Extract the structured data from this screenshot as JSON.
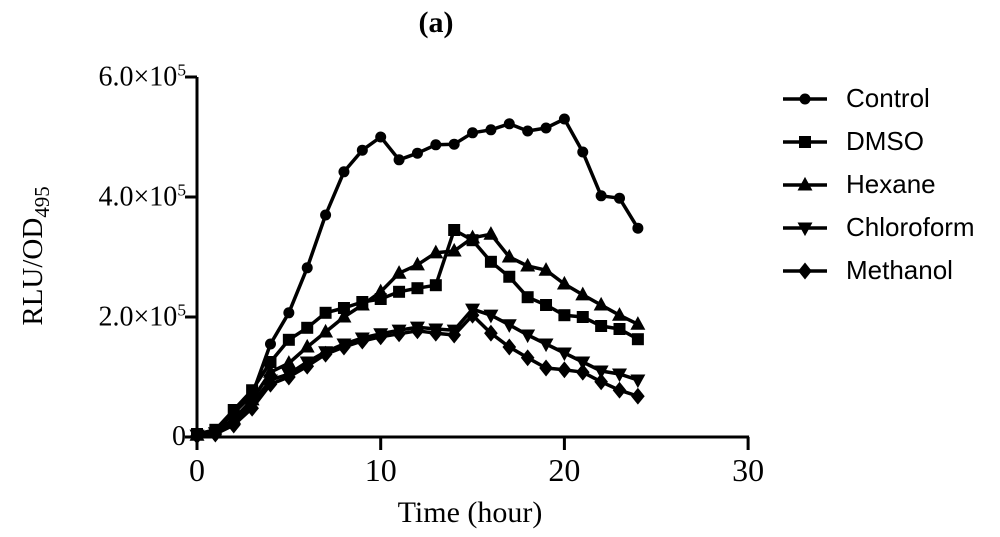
{
  "figure": {
    "title": "(a)"
  },
  "chart_data": {
    "type": "line",
    "title": "(a)",
    "xlabel": "Time (hour)",
    "ylabel": "RLU/OD",
    "ylabel_subscript": "495",
    "grid": false,
    "legend_position": "right",
    "colors": {
      "foreground": "#000000",
      "background": "#ffffff"
    },
    "x_axis": {
      "min": 0,
      "max": 30,
      "ticks": [
        0,
        10,
        20,
        30
      ]
    },
    "y_axis": {
      "min": 0,
      "max": 600000,
      "ticks": [
        {
          "value": 0,
          "base": "0",
          "exp": ""
        },
        {
          "value": 200000,
          "base": "2.0×10",
          "exp": "5"
        },
        {
          "value": 400000,
          "base": "4.0×10",
          "exp": "5"
        },
        {
          "value": 600000,
          "base": "6.0×10",
          "exp": "5"
        }
      ]
    },
    "x": [
      0,
      1,
      2,
      3,
      4,
      5,
      6,
      7,
      8,
      9,
      10,
      11,
      12,
      13,
      14,
      15,
      16,
      17,
      18,
      19,
      20,
      21,
      22,
      23,
      24
    ],
    "series": [
      {
        "name": "Control",
        "marker": "circle",
        "values": [
          5000,
          10000,
          40000,
          70000,
          155000,
          207000,
          282000,
          370000,
          442000,
          478000,
          500000,
          462000,
          473000,
          487000,
          488000,
          507000,
          512000,
          522000,
          510000,
          515000,
          530000,
          475000,
          402000,
          398000,
          348000
        ]
      },
      {
        "name": "DMSO",
        "marker": "square",
        "values": [
          5000,
          12000,
          45000,
          78000,
          125000,
          162000,
          182000,
          207000,
          215000,
          225000,
          230000,
          242000,
          248000,
          253000,
          345000,
          328000,
          292000,
          267000,
          233000,
          220000,
          203000,
          200000,
          185000,
          180000,
          163000
        ]
      },
      {
        "name": "Hexane",
        "marker": "triangle-up",
        "values": [
          3000,
          8000,
          30000,
          62000,
          108000,
          123000,
          150000,
          175000,
          200000,
          220000,
          242000,
          273000,
          287000,
          307000,
          310000,
          332000,
          338000,
          300000,
          285000,
          278000,
          255000,
          237000,
          220000,
          203000,
          188000
        ]
      },
      {
        "name": "Chloroform",
        "marker": "triangle-down",
        "values": [
          3000,
          7000,
          25000,
          55000,
          95000,
          105000,
          125000,
          142000,
          155000,
          165000,
          172000,
          178000,
          183000,
          180000,
          178000,
          213000,
          203000,
          187000,
          170000,
          155000,
          140000,
          125000,
          110000,
          105000,
          95000
        ]
      },
      {
        "name": "Methanol",
        "marker": "diamond",
        "values": [
          2000,
          5000,
          20000,
          48000,
          88000,
          100000,
          118000,
          138000,
          150000,
          160000,
          167000,
          172000,
          177000,
          173000,
          170000,
          203000,
          173000,
          150000,
          132000,
          115000,
          112000,
          108000,
          92000,
          78000,
          68000
        ]
      }
    ]
  }
}
